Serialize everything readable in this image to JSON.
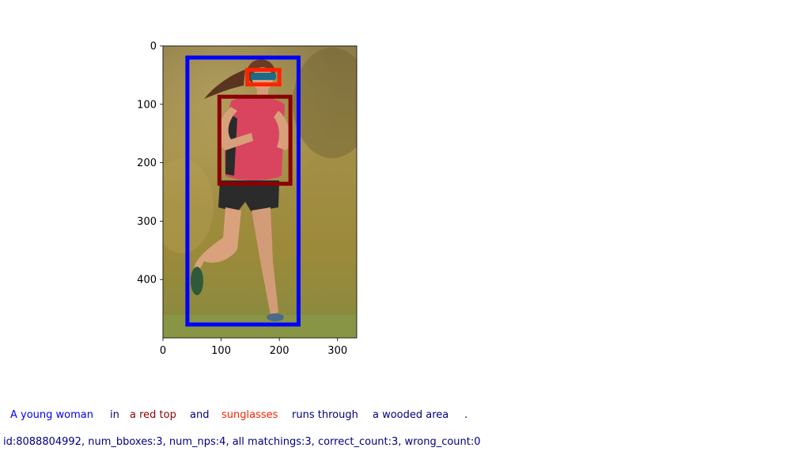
{
  "chart_data": {
    "type": "image_with_bboxes",
    "image_description": "woman in red top and sunglasses running on grass with wooded background",
    "image_size": {
      "width": 333,
      "height": 500
    },
    "xlim": [
      0,
      333
    ],
    "ylim": [
      500,
      0
    ],
    "xticks": [
      0,
      100,
      200,
      300
    ],
    "yticks": [
      0,
      100,
      200,
      300,
      400
    ],
    "xtick_labels": [
      "0",
      "100",
      "200",
      "300"
    ],
    "ytick_labels": [
      "0",
      "100",
      "200",
      "300",
      "400"
    ],
    "bboxes": [
      {
        "label": "A young woman",
        "color": "#0000ff",
        "x0": 42,
        "y0": 20,
        "x1": 233,
        "y1": 477
      },
      {
        "label": "a red top",
        "color": "#8b0000",
        "x0": 97,
        "y0": 87,
        "x1": 219,
        "y1": 236
      },
      {
        "label": "sunglasses",
        "color": "#ff2200",
        "x0": 145,
        "y0": 41,
        "x1": 200,
        "y1": 66
      }
    ],
    "caption": [
      {
        "text": "A young woman",
        "color": "#0000ff"
      },
      {
        "text": "in",
        "color": "#000080"
      },
      {
        "text": "a red top",
        "color": "#8b0000"
      },
      {
        "text": "and",
        "color": "#000080"
      },
      {
        "text": "sunglasses",
        "color": "#ff2200"
      },
      {
        "text": "runs through",
        "color": "#000080"
      },
      {
        "text": "a wooded area",
        "color": "#000080"
      },
      {
        "text": ".",
        "color": "#000080"
      }
    ],
    "info_text": "id:8088804992, num_bboxes:3, num_nps:4, all matchings:3, correct_count:3, wrong_count:0",
    "info_color": "#000080"
  }
}
